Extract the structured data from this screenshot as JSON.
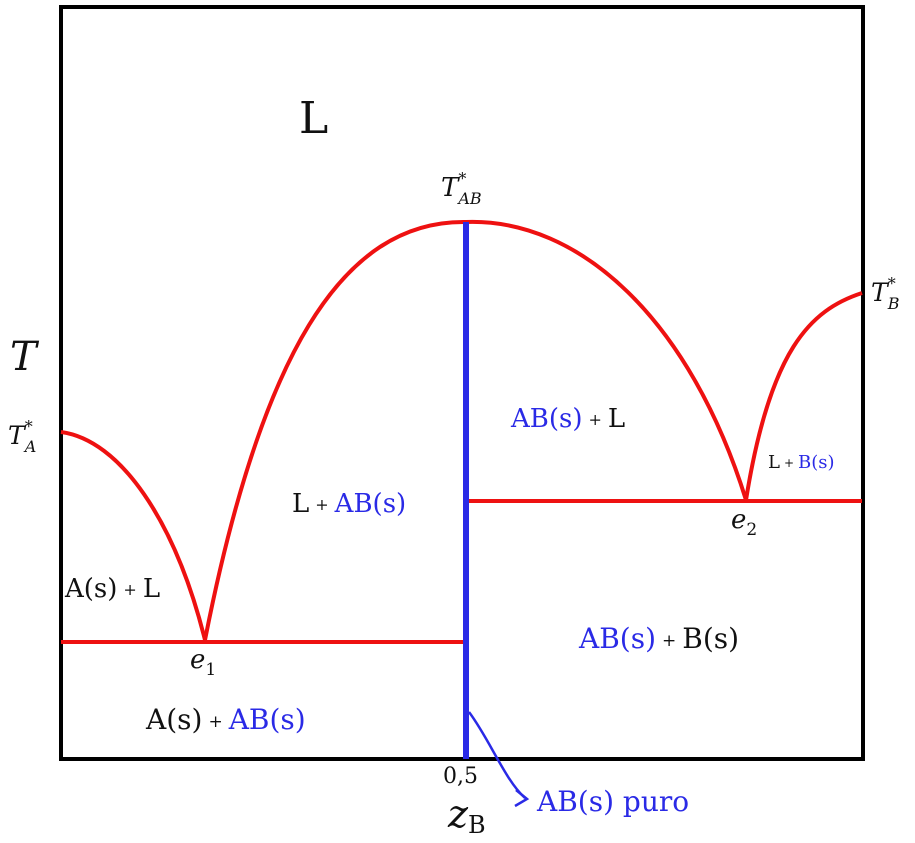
{
  "colors": {
    "liquidus": "#ee1111",
    "compound": "#2a2ae6",
    "frame": "#000000",
    "text": "#111111",
    "text_blue": "#2a2ae6"
  },
  "labels": {
    "region_L": "L",
    "t_axis": "T",
    "tA_main": "T",
    "tA_sup": "*",
    "tA_sub": "A",
    "tB_main": "T",
    "tB_sup": "*",
    "tB_sub": "B",
    "tAB_main": "T",
    "tAB_sup": "*",
    "tAB_sub": "AB",
    "e1_main": "e",
    "e1_sub": "1",
    "e2_main": "e",
    "e2_sub": "2",
    "x_tick": "0,5",
    "x_main": "z",
    "x_sub": "B",
    "a_s_plus_l": {
      "a": "A(s)",
      "plus": "+",
      "b": "L"
    },
    "l_plus_ab_left": {
      "a": "L",
      "plus": "+",
      "b": "AB(s)"
    },
    "ab_plus_l": {
      "a": "AB(s)",
      "plus": "+",
      "b": "L"
    },
    "l_plus_b": {
      "a": "L",
      "plus": "+",
      "b": "B(s)"
    },
    "a_plus_ab": {
      "a": "A(s)",
      "plus": "+",
      "b": "AB(s)"
    },
    "ab_plus_b": {
      "a": "AB(s)",
      "plus": "+",
      "b": "B(s)"
    },
    "ab_puro": "AB(s) puro"
  }
}
